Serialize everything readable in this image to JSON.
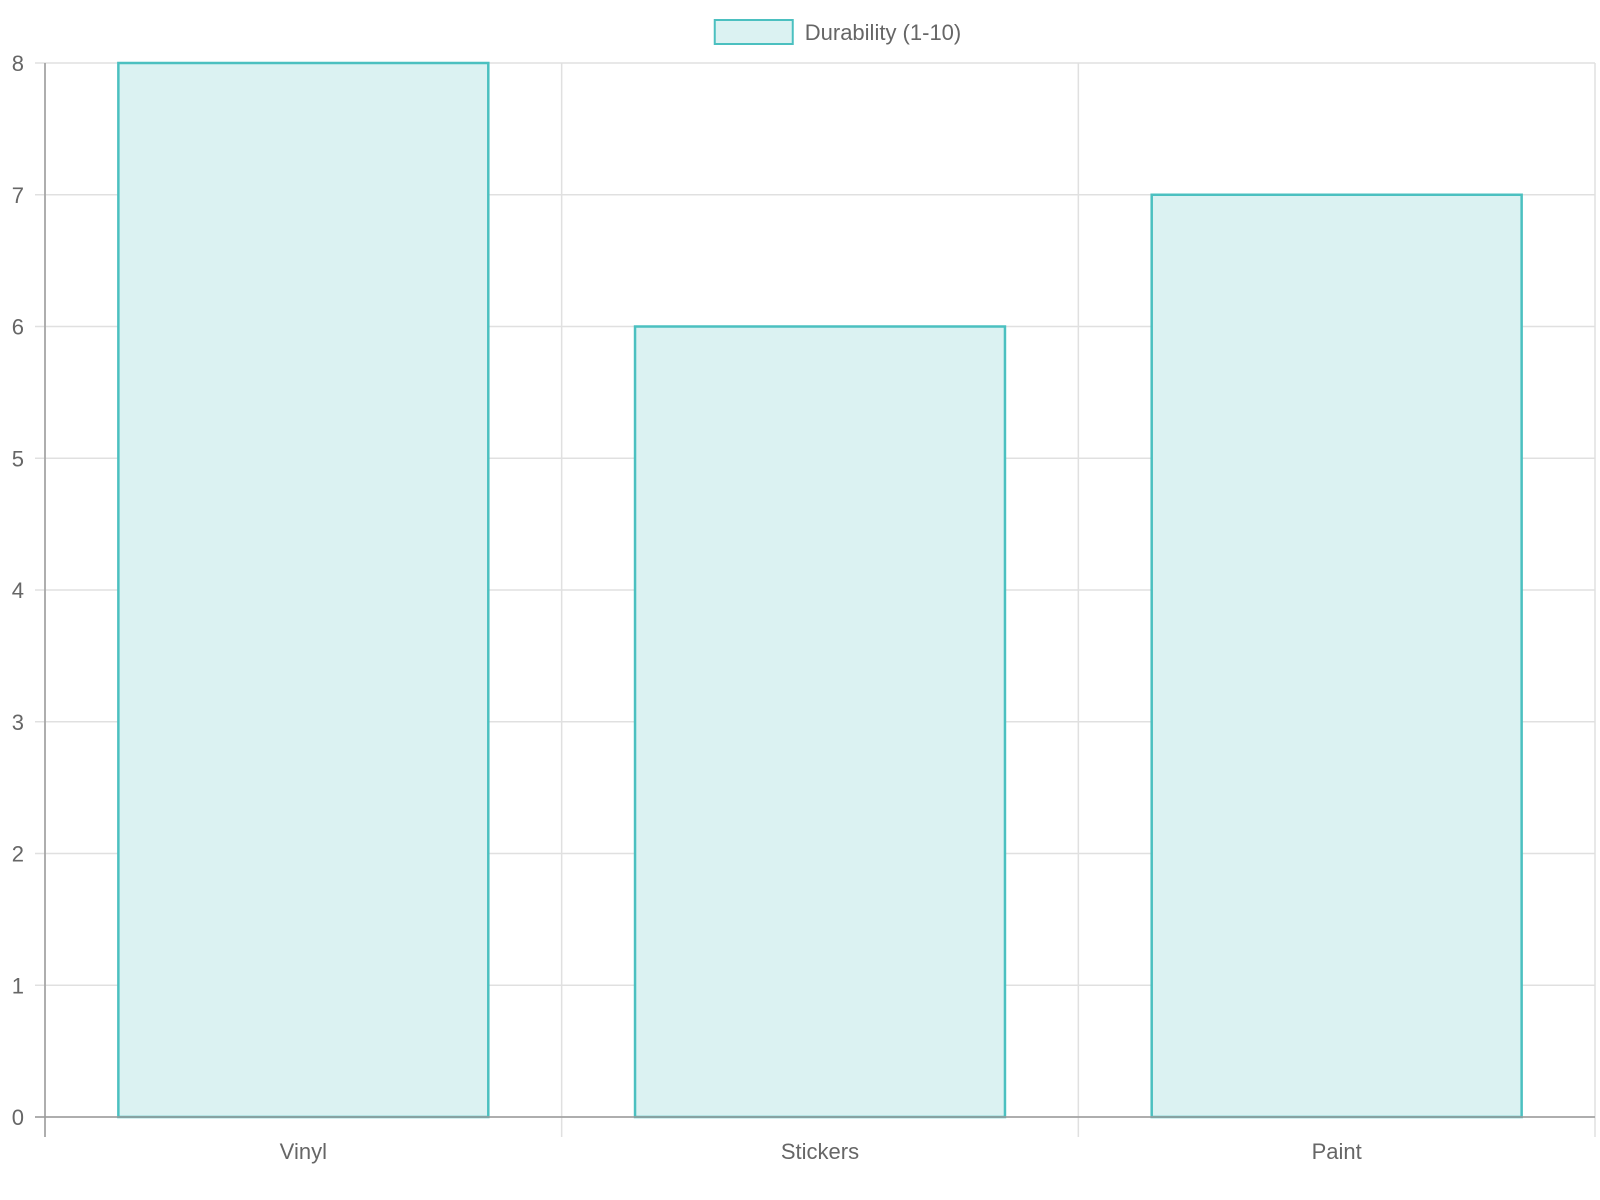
{
  "chart_data": {
    "type": "bar",
    "categories": [
      "Vinyl",
      "Stickers",
      "Paint"
    ],
    "series": [
      {
        "name": "Durability (1-10)",
        "values": [
          8,
          6,
          7
        ]
      }
    ],
    "ylim": [
      0,
      8
    ],
    "yticks": [
      0,
      1,
      2,
      3,
      4,
      5,
      6,
      7,
      8
    ],
    "grid": true,
    "legend_position": "top-center",
    "colors": {
      "bar_fill": "#dbf2f2",
      "bar_stroke": "#4bc0c0",
      "grid": "#e0e0e0",
      "axis": "#999999",
      "text": "#666666"
    }
  }
}
